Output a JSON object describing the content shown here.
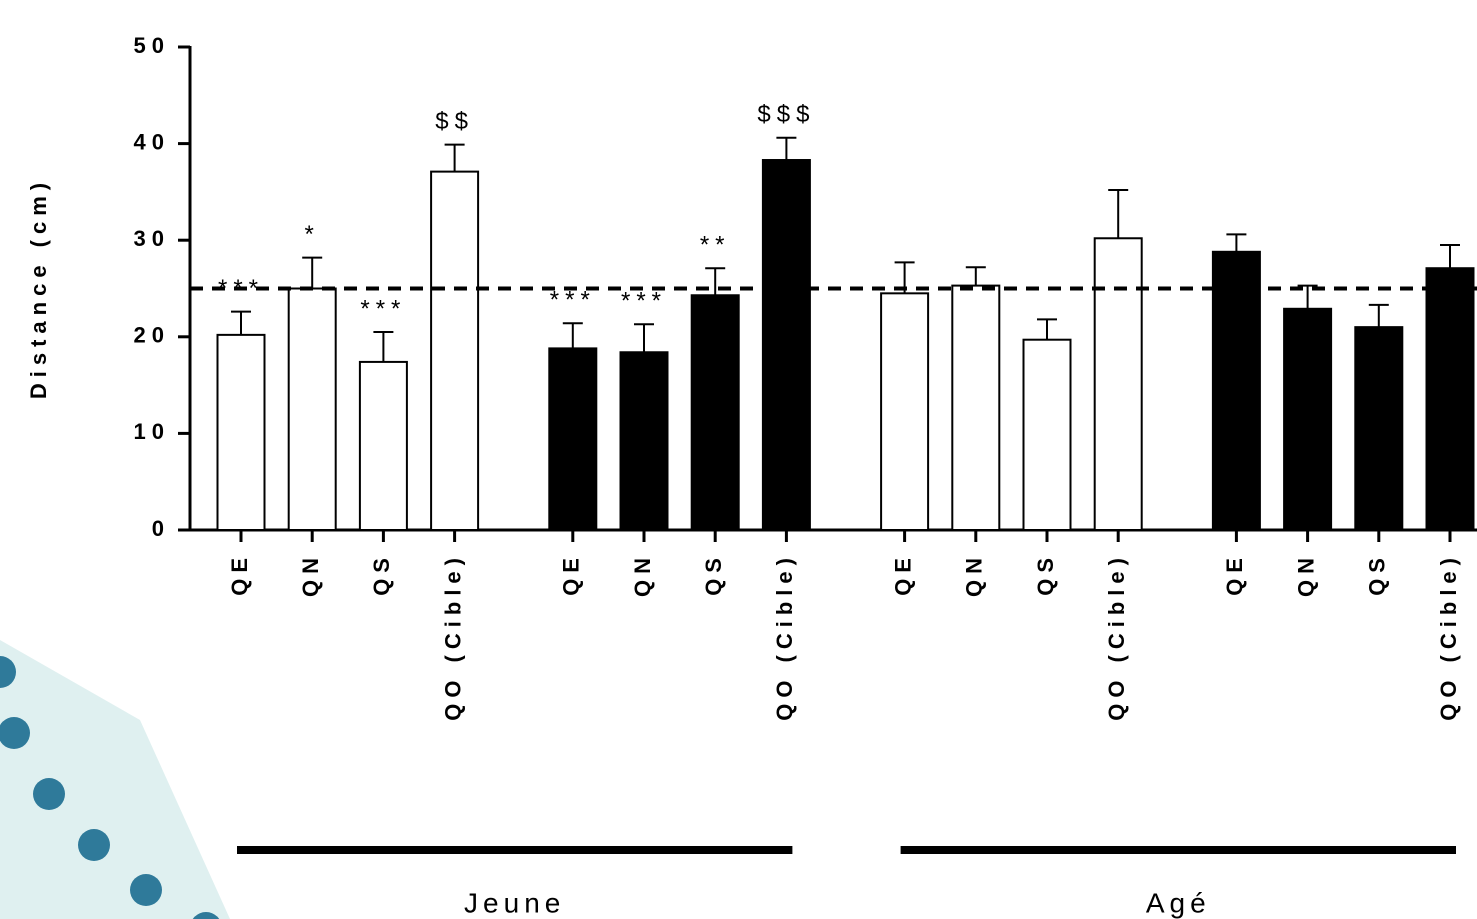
{
  "chart_data": {
    "type": "bar",
    "y_label": "Distance (cm)",
    "categories": [
      "QE",
      "QN",
      "QS",
      "QO (Cible)",
      "QE",
      "QN",
      "QS",
      "QO (Cible)",
      "QE",
      "QN",
      "QS",
      "QO (Cible)",
      "QE",
      "QN",
      "QS",
      "QO (Cible)"
    ],
    "values": [
      20.2,
      25.0,
      17.4,
      37.1,
      18.8,
      18.4,
      24.3,
      38.3,
      24.5,
      25.3,
      19.7,
      30.2,
      28.8,
      22.9,
      21.0,
      27.1
    ],
    "errors": [
      2.4,
      3.2,
      3.1,
      2.8,
      2.6,
      2.9,
      2.8,
      2.3,
      3.2,
      1.9,
      2.1,
      5.0,
      1.8,
      2.4,
      2.3,
      2.4
    ],
    "colors": [
      "#ffffff",
      "#ffffff",
      "#ffffff",
      "#ffffff",
      "#000000",
      "#000000",
      "#000000",
      "#000000",
      "#ffffff",
      "#ffffff",
      "#ffffff",
      "#ffffff",
      "#000000",
      "#000000",
      "#000000",
      "#000000"
    ],
    "annotations": [
      "***",
      "*",
      "***",
      "$$",
      "***",
      "***",
      "**",
      "$$$",
      null,
      null,
      null,
      null,
      null,
      null,
      null,
      null
    ],
    "x_groups": [
      "Jeune",
      "Agé"
    ],
    "reference_line": 25,
    "ylim": [
      0,
      50
    ],
    "yticks": [
      0,
      10,
      20,
      30,
      40,
      50
    ]
  }
}
